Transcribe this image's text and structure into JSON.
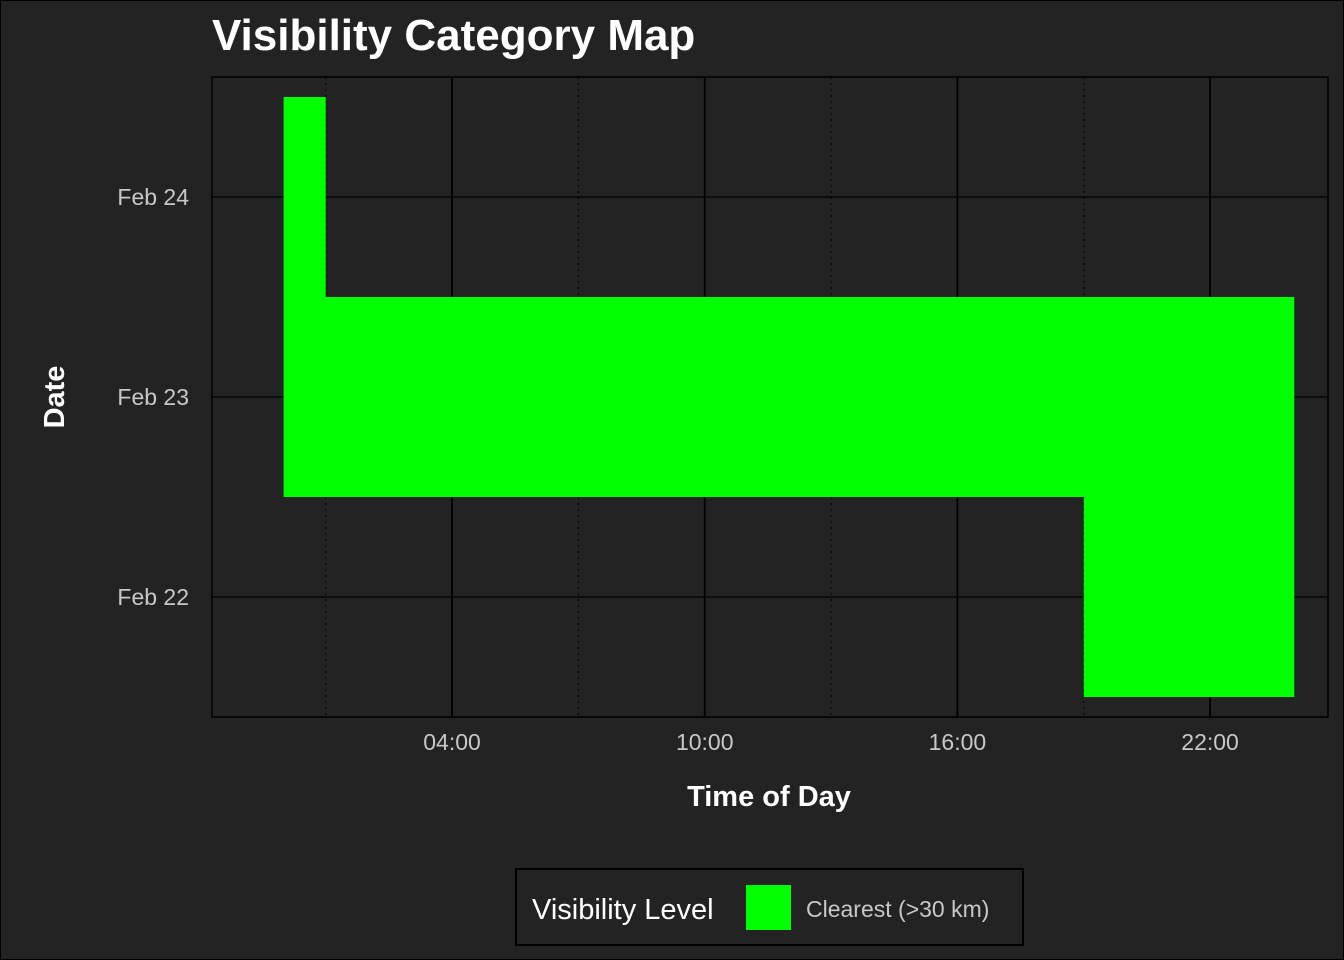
{
  "chart_data": {
    "type": "heatmap",
    "title": "Visibility Category Map",
    "xlabel": "Time of Day",
    "ylabel": "Date",
    "x_unit": "hour of day",
    "x_ticks": [
      {
        "value": 4,
        "label": "04:00"
      },
      {
        "value": 10,
        "label": "10:00"
      },
      {
        "value": 16,
        "label": "16:00"
      },
      {
        "value": 22,
        "label": "22:00"
      }
    ],
    "x_minor_ticks": [
      1,
      7,
      13,
      19
    ],
    "y_categories": [
      "Feb 22",
      "Feb 23",
      "Feb 24"
    ],
    "xlim": [
      -1.7,
      24.8
    ],
    "grid": true,
    "legend": {
      "title": "Visibility Level",
      "position": "bottom",
      "items": [
        {
          "label": "Clearest (>30 km)",
          "color": "#00ff00"
        }
      ]
    },
    "cells": [
      {
        "date": "Feb 24",
        "hour_start": 0,
        "hour_end": 1,
        "category": "Clearest (>30 km)"
      },
      {
        "date": "Feb 23",
        "hour_start": 0,
        "hour_end": 24,
        "category": "Clearest (>30 km)"
      },
      {
        "date": "Feb 22",
        "hour_start": 19,
        "hour_end": 24,
        "category": "Clearest (>30 km)"
      }
    ]
  },
  "colors": {
    "background": "#232323",
    "grid": "#000000",
    "clearest": "#00ff00"
  }
}
